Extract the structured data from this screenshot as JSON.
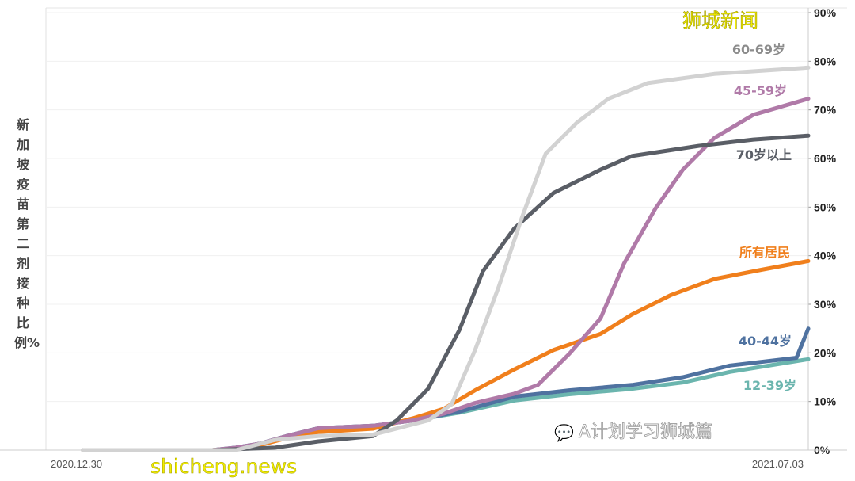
{
  "chart_data": {
    "type": "line",
    "title": "",
    "ylabel": "新加坡疫苗第二剂接种比例%",
    "xlabel": "",
    "x_tick_labels": [
      "2020.12.30",
      "2021.07.03"
    ],
    "xlim": [
      "2020-12-30",
      "2021-07-03"
    ],
    "ylim": [
      0,
      90
    ],
    "y_ticks": [
      0,
      10,
      20,
      30,
      40,
      50,
      60,
      70,
      80,
      90
    ],
    "y_tick_labels": [
      "0%",
      "10%",
      "20%",
      "30%",
      "40%",
      "50%",
      "60%",
      "70%",
      "80%",
      "90%"
    ],
    "y_axis_side": "right",
    "grid": true,
    "legend": "inline labels at right end of lines",
    "series": [
      {
        "name": "12-39岁",
        "color": "#6bb5ae",
        "points": [
          [
            "2020-12-30",
            0
          ],
          [
            "2021-02-01",
            0
          ],
          [
            "2021-02-07",
            0.5
          ],
          [
            "2021-02-13",
            1.3
          ],
          [
            "2021-02-20",
            2.9
          ],
          [
            "2021-02-28",
            4.5
          ],
          [
            "2021-03-14",
            5.0
          ],
          [
            "2021-03-24",
            6.1
          ],
          [
            "2021-04-05",
            7.7
          ],
          [
            "2021-04-19",
            10.2
          ],
          [
            "2021-05-03",
            11.5
          ],
          [
            "2021-05-19",
            12.6
          ],
          [
            "2021-06-01",
            13.9
          ],
          [
            "2021-06-13",
            16.1
          ],
          [
            "2021-07-03",
            18.7
          ]
        ]
      },
      {
        "name": "40-44岁",
        "color": "#4f72a0",
        "points": [
          [
            "2020-12-30",
            0
          ],
          [
            "2021-02-01",
            0
          ],
          [
            "2021-02-07",
            0.5
          ],
          [
            "2021-02-13",
            1.3
          ],
          [
            "2021-02-20",
            2.9
          ],
          [
            "2021-02-28",
            4.5
          ],
          [
            "2021-03-14",
            5.0
          ],
          [
            "2021-03-24",
            6.1
          ],
          [
            "2021-04-05",
            7.9
          ],
          [
            "2021-04-19",
            11.0
          ],
          [
            "2021-05-03",
            12.3
          ],
          [
            "2021-05-19",
            13.4
          ],
          [
            "2021-06-01",
            15.0
          ],
          [
            "2021-06-13",
            17.4
          ],
          [
            "2021-06-30",
            19.0
          ],
          [
            "2021-07-03",
            25.0
          ]
        ]
      },
      {
        "name": "所有居民",
        "color": "#f07f1c",
        "points": [
          [
            "2020-12-30",
            0
          ],
          [
            "2021-02-01",
            0
          ],
          [
            "2021-02-07",
            0.4
          ],
          [
            "2021-02-13",
            1.0
          ],
          [
            "2021-02-20",
            2.5
          ],
          [
            "2021-02-28",
            3.7
          ],
          [
            "2021-03-14",
            4.4
          ],
          [
            "2021-03-24",
            6.5
          ],
          [
            "2021-04-01",
            8.5
          ],
          [
            "2021-04-09",
            12.3
          ],
          [
            "2021-04-19",
            16.6
          ],
          [
            "2021-04-29",
            20.6
          ],
          [
            "2021-05-11",
            23.9
          ],
          [
            "2021-05-19",
            27.9
          ],
          [
            "2021-05-29",
            31.9
          ],
          [
            "2021-06-09",
            35.2
          ],
          [
            "2021-06-21",
            37.1
          ],
          [
            "2021-07-03",
            38.9
          ]
        ]
      },
      {
        "name": "45-59岁",
        "color": "#b07aa8",
        "points": [
          [
            "2020-12-30",
            0
          ],
          [
            "2021-02-01",
            0
          ],
          [
            "2021-02-07",
            0.5
          ],
          [
            "2021-02-13",
            1.3
          ],
          [
            "2021-02-20",
            2.9
          ],
          [
            "2021-02-28",
            4.5
          ],
          [
            "2021-03-14",
            5.0
          ],
          [
            "2021-03-24",
            6.1
          ],
          [
            "2021-04-01",
            7.5
          ],
          [
            "2021-04-09",
            9.7
          ],
          [
            "2021-04-19",
            11.6
          ],
          [
            "2021-04-25",
            13.4
          ],
          [
            "2021-05-03",
            19.8
          ],
          [
            "2021-05-11",
            27.1
          ],
          [
            "2021-05-17",
            38.4
          ],
          [
            "2021-05-25",
            49.7
          ],
          [
            "2021-06-01",
            57.7
          ],
          [
            "2021-06-09",
            64.2
          ],
          [
            "2021-06-19",
            69.0
          ],
          [
            "2021-07-03",
            72.3
          ]
        ]
      },
      {
        "name": "70岁以上",
        "color": "#5a5e66",
        "points": [
          [
            "2020-12-30",
            0
          ],
          [
            "2021-02-01",
            0
          ],
          [
            "2021-02-17",
            0.5
          ],
          [
            "2021-02-28",
            1.8
          ],
          [
            "2021-03-14",
            2.9
          ],
          [
            "2021-03-20",
            6.1
          ],
          [
            "2021-03-28",
            12.6
          ],
          [
            "2021-04-05",
            24.7
          ],
          [
            "2021-04-11",
            36.8
          ],
          [
            "2021-04-19",
            45.6
          ],
          [
            "2021-04-29",
            52.9
          ],
          [
            "2021-05-11",
            57.7
          ],
          [
            "2021-05-19",
            60.5
          ],
          [
            "2021-06-05",
            62.6
          ],
          [
            "2021-06-19",
            63.9
          ],
          [
            "2021-07-03",
            64.7
          ]
        ]
      },
      {
        "name": "60-69岁",
        "color": "#d2d2d2",
        "points": [
          [
            "2020-12-30",
            0
          ],
          [
            "2021-02-07",
            0
          ],
          [
            "2021-02-17",
            2.1
          ],
          [
            "2021-02-28",
            2.9
          ],
          [
            "2021-03-14",
            3.2
          ],
          [
            "2021-03-28",
            6.1
          ],
          [
            "2021-04-03",
            9.4
          ],
          [
            "2021-04-09",
            20.6
          ],
          [
            "2021-04-15",
            33.5
          ],
          [
            "2021-04-21",
            48.0
          ],
          [
            "2021-04-27",
            61.0
          ],
          [
            "2021-05-05",
            67.4
          ],
          [
            "2021-05-13",
            72.3
          ],
          [
            "2021-05-23",
            75.5
          ],
          [
            "2021-06-09",
            77.4
          ],
          [
            "2021-07-03",
            78.7
          ]
        ]
      }
    ]
  },
  "watermarks": {
    "top_right": "狮城新闻",
    "bottom_left": "shicheng.news",
    "bottom_right": "A计划学习狮城篇"
  }
}
